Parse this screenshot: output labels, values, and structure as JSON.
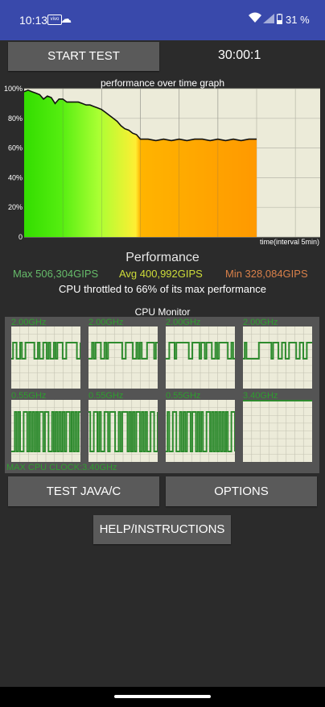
{
  "status": {
    "time": "10:13",
    "app_icon": "vivo",
    "battery": "31 %"
  },
  "controls": {
    "start": "START TEST",
    "timer": "30:00:1",
    "java": "TEST JAVA/C",
    "options": "OPTIONS",
    "help": "HELP/INSTRUCTIONS"
  },
  "graph": {
    "title": "performance over time graph",
    "xlabel": "time(interval 5min)",
    "yticks": [
      "100%",
      "80%",
      "60%",
      "40%",
      "20%",
      "0"
    ]
  },
  "chart_data": {
    "type": "area",
    "title": "performance over time graph",
    "xlabel": "time(interval 5min)",
    "ylabel": "",
    "ylim": [
      0,
      100
    ],
    "xlim": [
      0,
      30
    ],
    "grid": true,
    "x": [
      0,
      0.5,
      1,
      1.5,
      2,
      2.5,
      3,
      3.5,
      4,
      4.5,
      5,
      5.5,
      6,
      6.5,
      7,
      7.5,
      8,
      8.5,
      9,
      9.5,
      10,
      10.5,
      11,
      11.5,
      12,
      12.5,
      13,
      13.5,
      14,
      14.5,
      15,
      15.5,
      16,
      17,
      18,
      19,
      20,
      21,
      22,
      23,
      24,
      25,
      26,
      27,
      28,
      29,
      30
    ],
    "y": [
      98,
      99,
      98,
      97,
      96,
      93,
      95,
      94,
      90,
      93,
      93,
      91,
      91,
      91,
      91,
      90,
      89,
      89,
      88,
      87,
      86,
      84,
      82,
      80,
      78,
      75,
      73,
      72,
      70,
      69,
      66,
      66,
      66,
      65,
      66,
      65,
      66,
      65,
      66,
      66,
      65,
      66,
      65,
      66,
      65,
      66,
      66
    ]
  },
  "performance": {
    "title": "Performance",
    "max": "Max 506,304GIPS",
    "avg": "Avg 400,992GIPS",
    "min": "Min 328,084GIPS",
    "throttle": "CPU throttled to 66% of its max performance"
  },
  "cpu_monitor": {
    "title": "CPU Monitor",
    "max_clock": "MAX CPU CLOCK:3.40GHz",
    "cores": [
      {
        "label": "2.00GHz"
      },
      {
        "label": "2.00GHz"
      },
      {
        "label": "2.00GHz"
      },
      {
        "label": "2.00GHz"
      },
      {
        "label": "0.55GHz"
      },
      {
        "label": "0.55GHz"
      },
      {
        "label": "0.55GHz"
      },
      {
        "label": "3.40GHz"
      }
    ]
  },
  "colors": {
    "status_bar": "#3949ab",
    "button": "#5a5a5a",
    "core_line": "#2e8b2e"
  }
}
